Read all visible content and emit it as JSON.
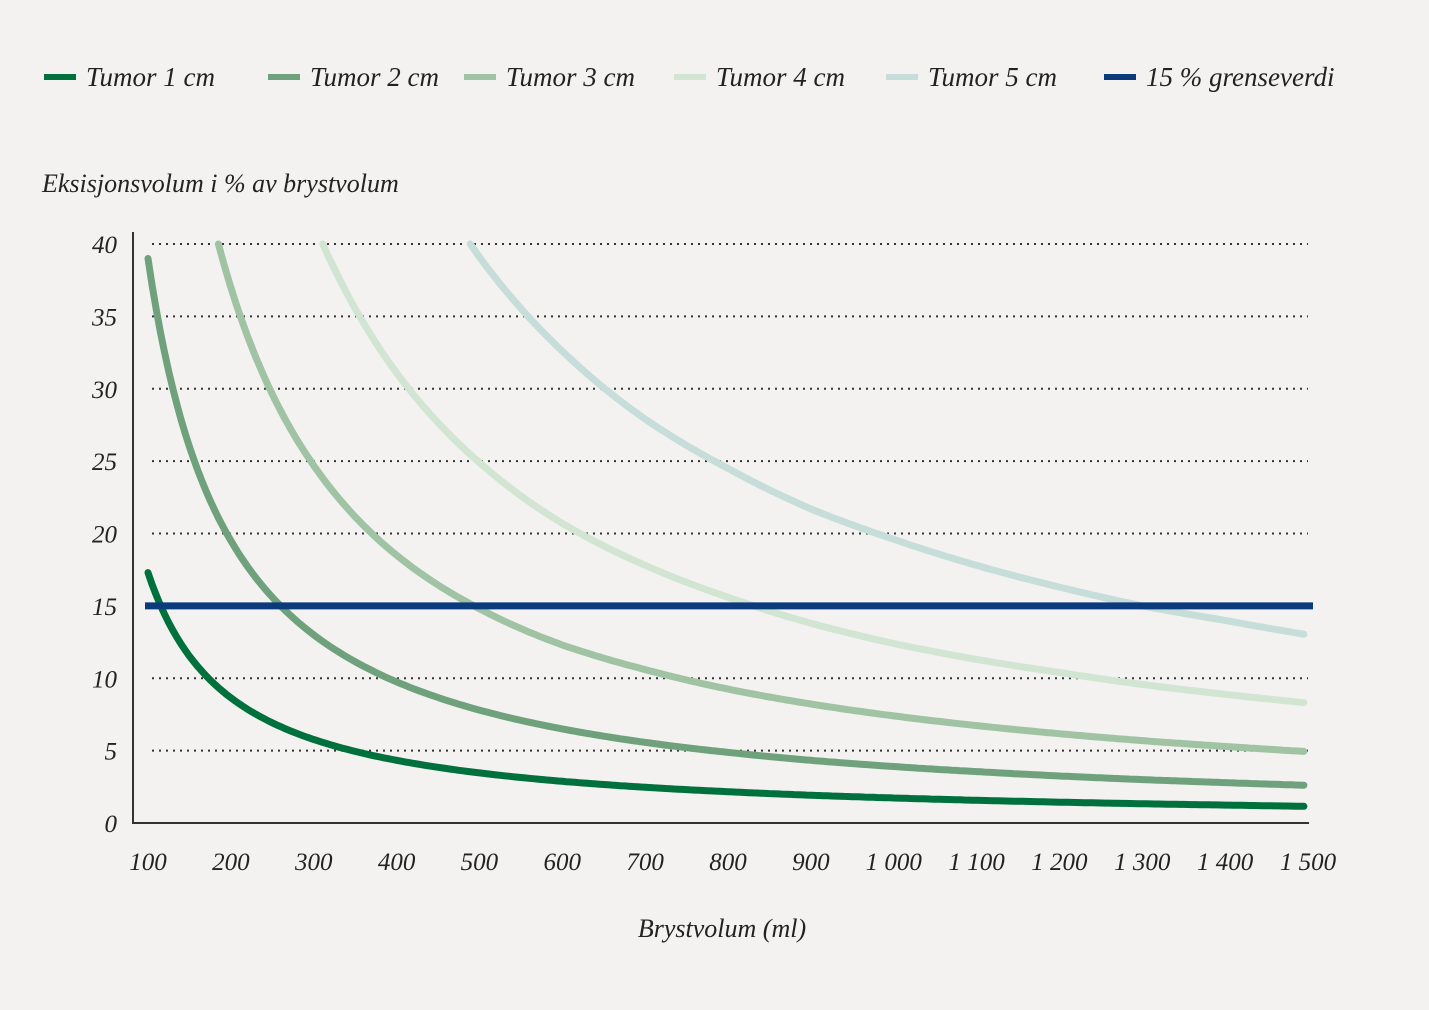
{
  "chart_data": {
    "type": "line",
    "title": "",
    "xlabel": "Brystvolum (ml)",
    "ylabel": "Eksisjonsvolum i % av brystvolum",
    "xlim": [
      100,
      1500
    ],
    "ylim": [
      0,
      40
    ],
    "x_ticks": [
      "100",
      "200",
      "300",
      "400",
      "500",
      "600",
      "700",
      "800",
      "900",
      "1 000",
      "1 100",
      "1 200",
      "1 300",
      "1 400",
      "1 500"
    ],
    "x_tick_values": [
      100,
      200,
      300,
      400,
      500,
      600,
      700,
      800,
      900,
      1000,
      1100,
      1200,
      1300,
      1400,
      1500
    ],
    "y_ticks": [
      "0",
      "5",
      "10",
      "15",
      "20",
      "25",
      "30",
      "35",
      "40"
    ],
    "y_tick_values": [
      0,
      5,
      10,
      15,
      20,
      25,
      30,
      35,
      40
    ],
    "grid": "horizontal dotted",
    "legend_position": "top",
    "series": [
      {
        "name": "Tumor 1 cm",
        "color": "#00703c",
        "x": [
          100,
          200,
          300,
          400,
          500,
          600,
          700,
          800,
          900,
          1000,
          1100,
          1200,
          1300,
          1400,
          1500
        ],
        "y": [
          17.3,
          8.65,
          5.77,
          4.33,
          3.46,
          2.88,
          2.47,
          2.16,
          1.92,
          1.73,
          1.57,
          1.44,
          1.33,
          1.24,
          1.15
        ]
      },
      {
        "name": "Tumor 2 cm",
        "color": "#6fa27c",
        "x": [
          100,
          200,
          300,
          400,
          500,
          600,
          700,
          800,
          900,
          1000,
          1100,
          1200,
          1300,
          1400,
          1500
        ],
        "y": [
          39,
          19.5,
          13,
          9.75,
          7.8,
          6.5,
          5.57,
          4.88,
          4.33,
          3.9,
          3.55,
          3.25,
          3.0,
          2.79,
          2.6
        ]
      },
      {
        "name": "Tumor 3 cm",
        "color": "#a0c3a4",
        "x": [
          185,
          200,
          300,
          400,
          500,
          600,
          700,
          800,
          900,
          1000,
          1100,
          1200,
          1300,
          1400,
          1500
        ],
        "y": [
          40,
          37,
          24.7,
          18.5,
          14.8,
          12.3,
          10.6,
          9.25,
          8.22,
          7.4,
          6.73,
          6.17,
          5.69,
          5.29,
          4.93
        ]
      },
      {
        "name": "Tumor 4 cm",
        "color": "#d2e5d3",
        "x": [
          311,
          400,
          500,
          600,
          700,
          800,
          900,
          1000,
          1100,
          1200,
          1300,
          1400,
          1500
        ],
        "y": [
          40,
          31.1,
          24.9,
          20.7,
          17.8,
          15.6,
          13.8,
          12.4,
          11.3,
          10.4,
          9.57,
          8.89,
          8.29
        ]
      },
      {
        "name": "Tumor 5 cm",
        "color": "#c6ddd9",
        "x": [
          489,
          500,
          600,
          700,
          800,
          900,
          1000,
          1100,
          1200,
          1300,
          1400,
          1500
        ],
        "y": [
          40,
          39.1,
          32.6,
          27.9,
          24.5,
          21.7,
          19.6,
          17.8,
          16.3,
          15.0,
          14.0,
          13.0
        ]
      }
    ],
    "threshold": {
      "name": "15 % grenseverdi",
      "value": 15,
      "color": "#0b3b7c"
    }
  }
}
